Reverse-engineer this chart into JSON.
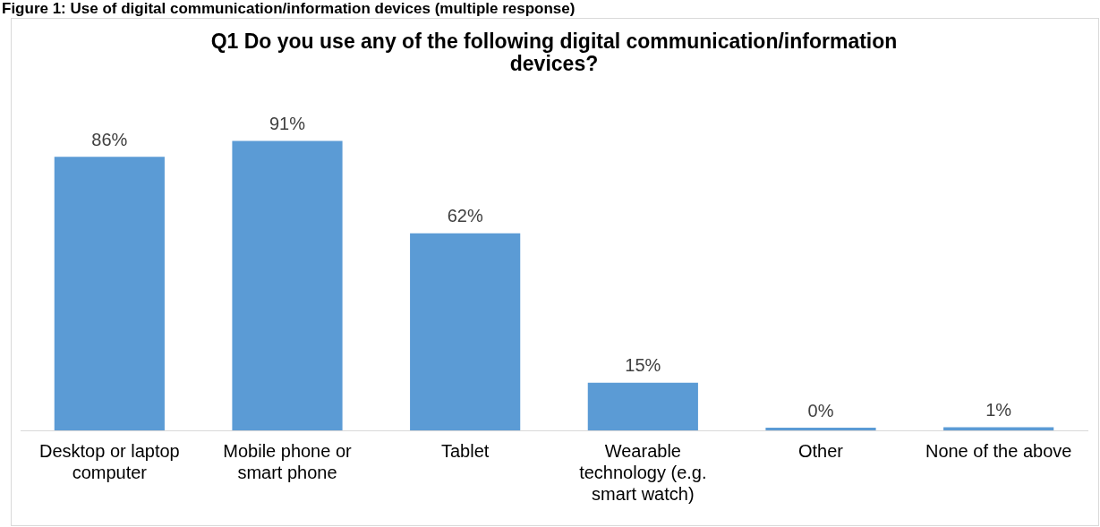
{
  "chart_data": {
    "type": "bar",
    "title": [
      "Q1 Do you use any of the following digital communication/information",
      "devices?"
    ],
    "annotations": [
      "Figure 1: Use of digital communication/information devices (multiple response)"
    ],
    "categories": [
      [
        "Desktop or laptop",
        "computer"
      ],
      [
        "Mobile phone or",
        "smart phone"
      ],
      [
        "Tablet"
      ],
      [
        "Wearable",
        "technology (e.g.",
        "smart watch)"
      ],
      [
        "Other"
      ],
      [
        "None of the above"
      ]
    ],
    "values": [
      86,
      91,
      62,
      15,
      0,
      1
    ],
    "color": "#5b9bd5",
    "tick_labels": "x",
    "value_labels": [
      "86%",
      "91%",
      "62%",
      "15%",
      "0%",
      "1%"
    ],
    "grid": false,
    "legend": false
  }
}
